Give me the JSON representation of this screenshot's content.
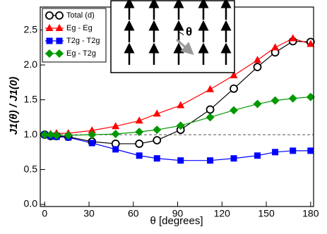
{
  "chart_data": {
    "type": "line",
    "xlabel": "θ [degrees]",
    "ylabel": "J1(θ) / J1(0)",
    "inset_label": "θ",
    "x": [
      0,
      4,
      8,
      16,
      32,
      48,
      64,
      76,
      92,
      112,
      128,
      144,
      156,
      168,
      180
    ],
    "series": [
      {
        "name": "Total (d)",
        "color": "#000000",
        "marker": "circle",
        "values": [
          1.0,
          0.98,
          0.98,
          0.97,
          0.9,
          0.87,
          0.87,
          0.92,
          1.07,
          1.36,
          1.66,
          1.97,
          2.18,
          2.34,
          2.33
        ]
      },
      {
        "name": "Eg - Eg",
        "color": "#ff0000",
        "marker": "triangle",
        "values": [
          1.0,
          1.01,
          1.02,
          1.02,
          1.06,
          1.12,
          1.2,
          1.3,
          1.42,
          1.65,
          1.85,
          2.07,
          2.25,
          2.38,
          2.3
        ]
      },
      {
        "name": "T2g - T2g",
        "color": "#0000ff",
        "marker": "square",
        "values": [
          1.0,
          0.98,
          0.97,
          0.96,
          0.88,
          0.79,
          0.7,
          0.66,
          0.63,
          0.63,
          0.66,
          0.7,
          0.75,
          0.77,
          0.77
        ]
      },
      {
        "name": "Eg - T2g",
        "color": "#009900",
        "marker": "diamond",
        "values": [
          1.0,
          1.0,
          0.99,
          0.99,
          1.0,
          1.01,
          1.04,
          1.07,
          1.13,
          1.25,
          1.35,
          1.44,
          1.49,
          1.52,
          1.54
        ]
      }
    ],
    "hline": 1,
    "xlim": [
      -3,
      182
    ],
    "ylim": [
      -0.03,
      2.83
    ],
    "xticks": [
      0,
      30,
      60,
      90,
      120,
      150,
      180
    ],
    "yticks": [
      {
        "value": 0,
        "label": "0.0"
      },
      {
        "value": 0.5,
        "label": "0.5"
      },
      {
        "value": 1,
        "label": "1.0"
      },
      {
        "value": 1.5,
        "label": "1.5"
      },
      {
        "value": 2,
        "label": "2.0"
      },
      {
        "value": 2.5,
        "label": "2.5"
      }
    ],
    "legend": "upper left"
  }
}
